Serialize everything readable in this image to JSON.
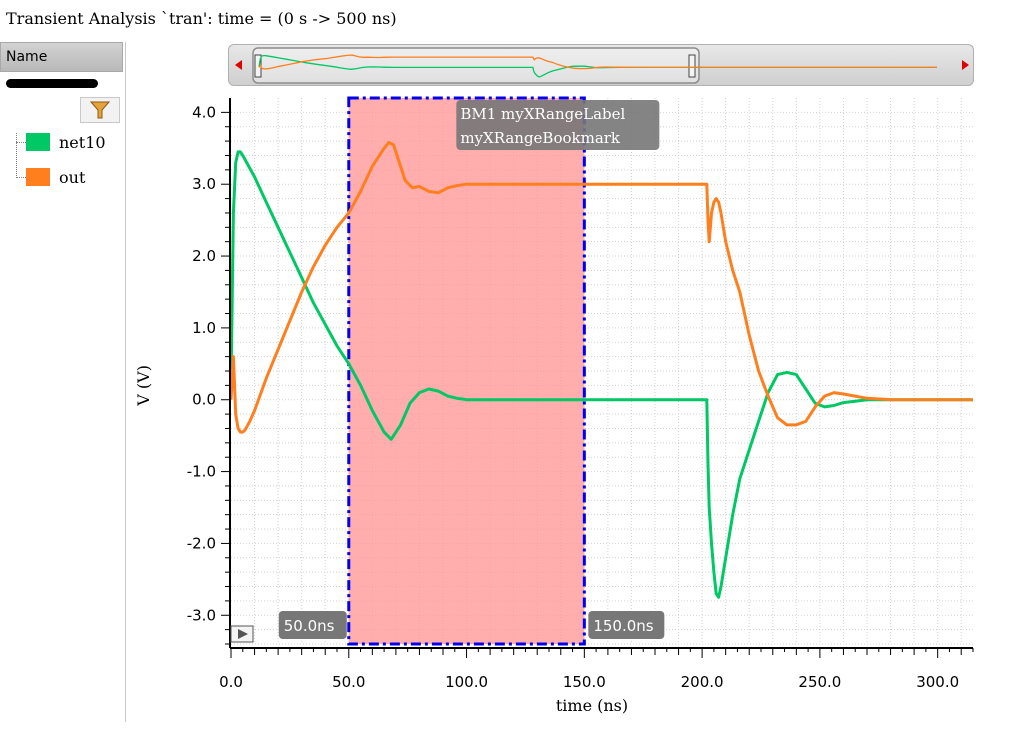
{
  "title": "Transient Analysis `tran': time = (0 s -> 500 ns)",
  "sidebar": {
    "header": "Name",
    "filter_icon": "funnel-icon",
    "signals": [
      {
        "name": "net10",
        "color": "#00c864"
      },
      {
        "name": "out",
        "color": "#ff7f1e"
      }
    ]
  },
  "overview": {
    "left_arrow": "arrow-left-icon",
    "right_arrow": "arrow-right-icon"
  },
  "play_icon": "play-icon",
  "chart_data": {
    "type": "line",
    "xlabel": "time (ns)",
    "ylabel": "V (V)",
    "xlim": [
      0,
      315
    ],
    "ylim": [
      -3.4,
      4.2
    ],
    "x_ticks": [
      "0.0",
      "50.0",
      "100.0",
      "150.0",
      "200.0",
      "250.0",
      "300.0"
    ],
    "y_ticks": [
      "4.0",
      "3.0",
      "2.0",
      "1.0",
      "0.0",
      "-1.0",
      "-2.0",
      "-3.0"
    ],
    "grid": true,
    "series": [
      {
        "name": "net10",
        "color": "#00c864",
        "x": [
          0,
          1,
          2,
          3,
          4,
          5,
          10,
          15,
          20,
          25,
          30,
          35,
          40,
          45,
          50,
          55,
          60,
          65,
          68,
          72,
          76,
          80,
          84,
          88,
          92,
          96,
          100,
          110,
          120,
          130,
          140,
          150,
          160,
          170,
          180,
          190,
          200,
          202,
          202.5,
          203,
          204,
          205,
          206,
          207,
          208,
          210,
          213,
          216,
          220,
          224,
          228,
          232,
          236,
          240,
          244,
          248,
          252,
          256,
          260,
          265,
          270,
          280,
          290,
          300,
          315
        ],
        "y": [
          0.2,
          2.6,
          3.3,
          3.45,
          3.45,
          3.4,
          3.1,
          2.75,
          2.4,
          2.05,
          1.7,
          1.35,
          1.05,
          0.75,
          0.5,
          0.2,
          -0.15,
          -0.45,
          -0.55,
          -0.35,
          -0.05,
          0.1,
          0.15,
          0.12,
          0.05,
          0.02,
          0.0,
          0.0,
          0.0,
          0.0,
          0.0,
          0.0,
          0.0,
          0.0,
          0.0,
          0.0,
          0.0,
          0.0,
          -0.9,
          -1.5,
          -2.0,
          -2.4,
          -2.7,
          -2.75,
          -2.6,
          -2.2,
          -1.6,
          -1.1,
          -0.7,
          -0.3,
          0.1,
          0.35,
          0.38,
          0.35,
          0.15,
          -0.05,
          -0.1,
          -0.08,
          -0.04,
          -0.02,
          0.0,
          0.0,
          0.0,
          0.0,
          0.0
        ]
      },
      {
        "name": "out",
        "color": "#ff7f1e",
        "x": [
          0,
          1,
          2,
          3,
          4,
          5,
          6,
          8,
          10,
          15,
          20,
          25,
          30,
          35,
          40,
          45,
          50,
          55,
          60,
          65,
          67,
          69,
          71,
          74,
          77,
          80,
          84,
          88,
          92,
          96,
          100,
          110,
          120,
          130,
          140,
          150,
          160,
          170,
          180,
          190,
          200,
          202,
          202.5,
          203,
          204,
          205,
          206,
          207,
          208,
          210,
          213,
          216,
          220,
          224,
          228,
          232,
          236,
          240,
          244,
          248,
          252,
          256,
          260,
          265,
          270,
          280,
          290,
          300,
          315
        ],
        "y": [
          0.0,
          0.6,
          -0.2,
          -0.4,
          -0.45,
          -0.45,
          -0.42,
          -0.3,
          -0.15,
          0.3,
          0.7,
          1.1,
          1.5,
          1.85,
          2.15,
          2.4,
          2.6,
          2.9,
          3.25,
          3.5,
          3.58,
          3.55,
          3.35,
          3.05,
          2.95,
          2.97,
          2.9,
          2.88,
          2.95,
          2.98,
          3.0,
          3.0,
          3.0,
          3.0,
          3.0,
          3.0,
          3.0,
          3.0,
          3.0,
          3.0,
          3.0,
          3.0,
          2.5,
          2.2,
          2.6,
          2.75,
          2.8,
          2.75,
          2.6,
          2.2,
          1.8,
          1.5,
          0.9,
          0.4,
          0.05,
          -0.25,
          -0.35,
          -0.35,
          -0.3,
          -0.1,
          0.05,
          0.1,
          0.08,
          0.05,
          0.02,
          0.0,
          0.0,
          0.0,
          0.0
        ]
      }
    ],
    "bookmark": {
      "x_start": 50.0,
      "x_end": 150.0,
      "start_label": "50.0ns",
      "end_label": "150.0ns",
      "label_line1": "BM1 myXRangeLabel",
      "label_line2": "myXRangeBookmark",
      "fill_color": "#ff9999",
      "border_color": "#0000ee"
    }
  }
}
